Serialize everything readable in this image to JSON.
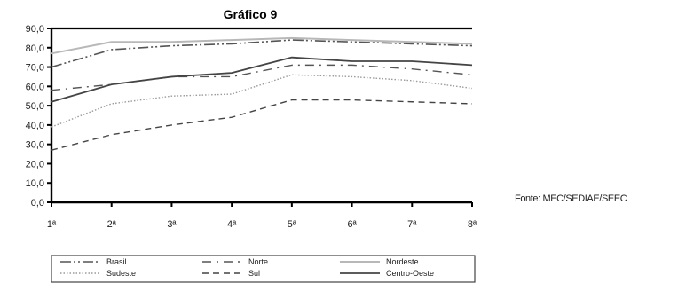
{
  "chart_data": {
    "type": "line",
    "title": "Gráfico 9",
    "xlabel": "",
    "ylabel": "",
    "categories": [
      "1ª",
      "2ª",
      "3ª",
      "4ª",
      "5ª",
      "6ª",
      "7ª",
      "8ª"
    ],
    "yticks": [
      "0,0",
      "10,0",
      "20,0",
      "30,0",
      "40,0",
      "50,0",
      "60,0",
      "70,0",
      "80,0",
      "90,0"
    ],
    "ylim": [
      0,
      90
    ],
    "grid": false,
    "legend_position": "bottom",
    "series": [
      {
        "name": "Brasil",
        "color": "#555555",
        "dash": "12 3 2 3 2 3",
        "width": 1.6,
        "values": [
          70,
          79,
          81,
          82,
          84,
          83,
          82,
          81
        ]
      },
      {
        "name": "Norte",
        "color": "#555555",
        "dash": "10 6 2 6",
        "width": 1.4,
        "values": [
          58,
          61,
          65,
          65,
          71,
          71,
          69,
          66
        ]
      },
      {
        "name": "Nordeste",
        "color": "#b8b8b8",
        "dash": "",
        "width": 2,
        "values": [
          77,
          83,
          83,
          84,
          85,
          84,
          83,
          82
        ]
      },
      {
        "name": "Sudeste",
        "color": "#9a9a9a",
        "dash": "1.5 2",
        "width": 1.4,
        "values": [
          39,
          51,
          55,
          56,
          66,
          65,
          63,
          59
        ]
      },
      {
        "name": "Sul",
        "color": "#444444",
        "dash": "7 5",
        "width": 1.4,
        "values": [
          27,
          35,
          40,
          44,
          53,
          53,
          52,
          51
        ]
      },
      {
        "name": "Centro-Oeste",
        "color": "#444444",
        "dash": "",
        "width": 1.8,
        "values": [
          52,
          61,
          65,
          67,
          75,
          73,
          73,
          71
        ]
      }
    ]
  },
  "source": "Fonte: MEC/SEDIAE/SEEC"
}
